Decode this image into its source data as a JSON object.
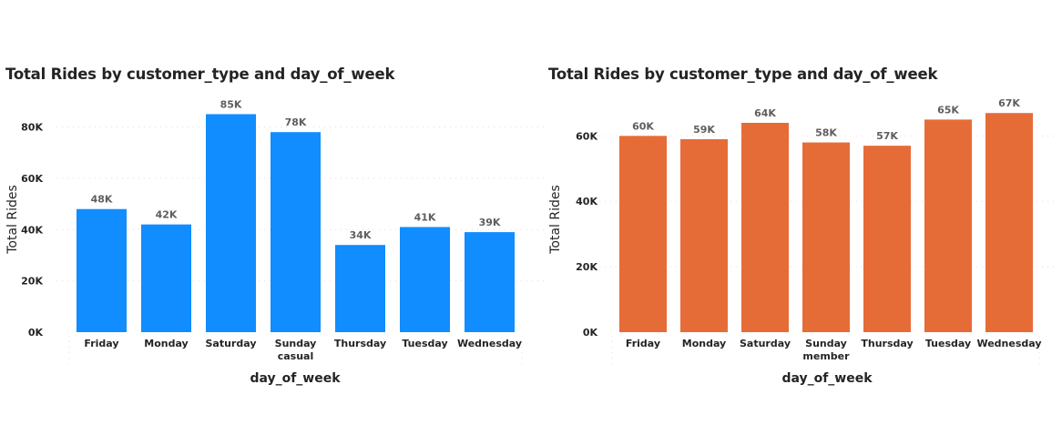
{
  "chart_data": [
    {
      "type": "bar",
      "title": "Total Rides by customer_type and day_of_week",
      "xlabel": "day_of_week",
      "ylabel": "Total Rides",
      "group_label": "casual",
      "categories": [
        "Friday",
        "Monday",
        "Saturday",
        "Sunday",
        "Thursday",
        "Tuesday",
        "Wednesday"
      ],
      "values": [
        48000,
        42000,
        85000,
        78000,
        34000,
        41000,
        39000
      ],
      "data_labels": [
        "48K",
        "42K",
        "85K",
        "78K",
        "34K",
        "41K",
        "39K"
      ],
      "yticks": [
        0,
        20000,
        40000,
        60000,
        80000
      ],
      "ytick_labels": [
        "0K",
        "20K",
        "40K",
        "60K",
        "80K"
      ],
      "ylim": [
        0,
        88000
      ],
      "color": "#118dff",
      "grid": true
    },
    {
      "type": "bar",
      "title": "Total Rides by customer_type and day_of_week",
      "xlabel": "day_of_week",
      "ylabel": "Total Rides",
      "group_label": "member",
      "categories": [
        "Friday",
        "Monday",
        "Saturday",
        "Sunday",
        "Thursday",
        "Tuesday",
        "Wednesday"
      ],
      "values": [
        60000,
        59000,
        64000,
        58000,
        57000,
        65000,
        67000
      ],
      "data_labels": [
        "60K",
        "59K",
        "64K",
        "58K",
        "57K",
        "65K",
        "67K"
      ],
      "yticks": [
        0,
        20000,
        40000,
        60000
      ],
      "ytick_labels": [
        "0K",
        "20K",
        "40K",
        "60K"
      ],
      "ylim": [
        0,
        69000
      ],
      "color": "#e66c37",
      "grid": true
    }
  ]
}
